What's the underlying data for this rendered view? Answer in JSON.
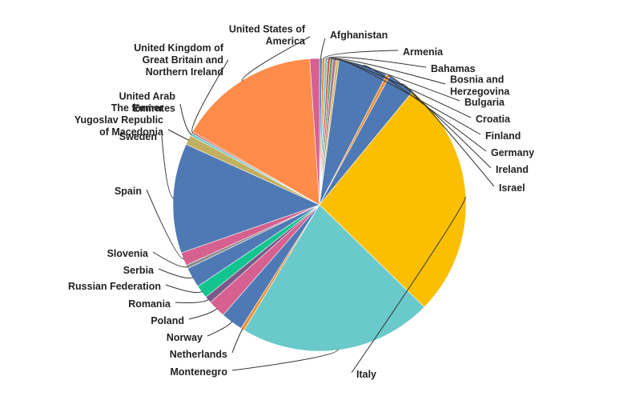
{
  "chart_data": {
    "type": "pie",
    "title": "",
    "start_angle_deg": 0,
    "direction": "clockwise",
    "slices": [
      {
        "label": [
          "Afghanistan"
        ],
        "value": 0.3,
        "color": "#4e79b4"
      },
      {
        "label": [
          "Armenia"
        ],
        "value": 0.3,
        "color": "#f28e2b"
      },
      {
        "label": [
          "Bahamas"
        ],
        "value": 0.3,
        "color": "#6ac9cb"
      },
      {
        "label": [
          "Bosnia and",
          "Herzegovina"
        ],
        "value": 0.3,
        "color": "#e15759"
      },
      {
        "label": [
          "Bulgaria"
        ],
        "value": 0.3,
        "color": "#59a14f"
      },
      {
        "label": [
          "Croatia"
        ],
        "value": 0.4,
        "color": "#b07aa1"
      },
      {
        "label": [
          "Finland"
        ],
        "value": 0.3,
        "color": "#d4b85c"
      },
      {
        "label": [
          "Germany"
        ],
        "value": 5.6,
        "color": "#4e79b4"
      },
      {
        "label": [
          "Ireland"
        ],
        "value": 0.4,
        "color": "#f28e2b"
      },
      {
        "label": [
          "Israel"
        ],
        "value": 3.1,
        "color": "#4e79b4"
      },
      {
        "label": [
          "Italy"
        ],
        "value": 27.2,
        "color": "#f9bf00"
      },
      {
        "label": [
          "Montenegro"
        ],
        "value": 22.0,
        "color": "#6ac9cb"
      },
      {
        "label": [
          "Netherlands"
        ],
        "value": 0.4,
        "color": "#f28e2b"
      },
      {
        "label": [
          "Norway"
        ],
        "value": 2.5,
        "color": "#4e79b4"
      },
      {
        "label": [
          "Poland"
        ],
        "value": 2.0,
        "color": "#d6608f"
      },
      {
        "label": [
          "Romania"
        ],
        "value": 0.8,
        "color": "#7a5a8a"
      },
      {
        "label": [
          "Russian Federation"
        ],
        "value": 1.5,
        "color": "#12c48e"
      },
      {
        "label": [
          "Serbia"
        ],
        "value": 2.3,
        "color": "#4e79b4"
      },
      {
        "label": [
          "Slovenia"
        ],
        "value": 0.4,
        "color": "#8c8c8c"
      },
      {
        "label": [
          "Spain"
        ],
        "value": 1.5,
        "color": "#d6608f"
      },
      {
        "label": [
          "Sweden"
        ],
        "value": 12.5,
        "color": "#4e79b4"
      },
      {
        "label": [
          "The former",
          "Yugoslav Republic",
          "of Macedonia"
        ],
        "value": 1.1,
        "color": "#c2b060"
      },
      {
        "label": [
          "United Arab",
          "Emirates"
        ],
        "value": 0.3,
        "color": "#6ac9cb"
      },
      {
        "label": [
          "United Kingdom of",
          "Great Britain and",
          "Northern Ireland"
        ],
        "value": 0.2,
        "color": "#e15759"
      },
      {
        "label": [
          "United States of",
          "America"
        ],
        "value": 16.1,
        "color": "#ff8c4a"
      },
      {
        "label": [],
        "value": 1.1,
        "color": "#d6608f"
      }
    ]
  }
}
